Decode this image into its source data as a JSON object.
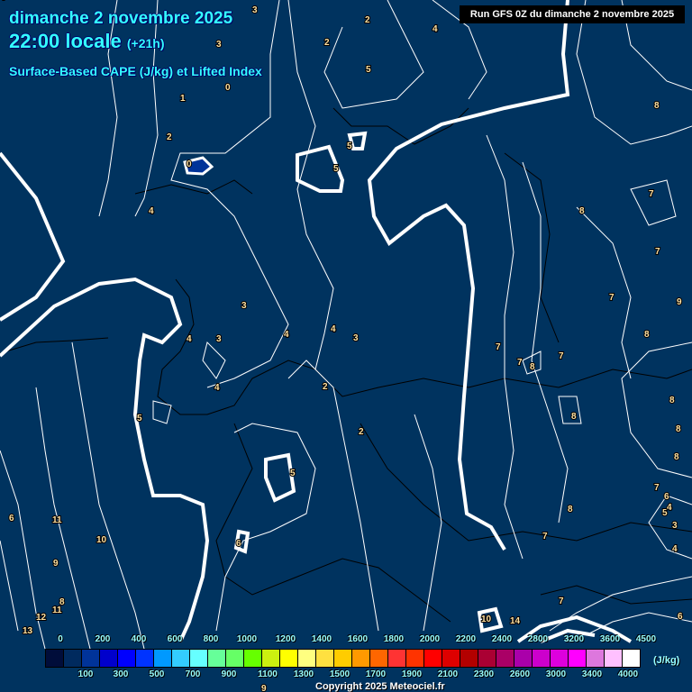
{
  "header": {
    "date": "dimanche 2 novembre 2025",
    "time": "22:00 locale",
    "offset": "(+21h)",
    "parameter": "Surface-Based CAPE (J/kg) et Lifted Index"
  },
  "run_label": "Run GFS 0Z du dimanche 2 novembre 2025",
  "legend": {
    "unit": "(J/kg)",
    "top_labels": [
      "0",
      "200",
      "400",
      "600",
      "800",
      "1000",
      "1200",
      "1400",
      "1600",
      "1800",
      "2000",
      "2200",
      "2400",
      "2800",
      "3200",
      "3600",
      "4500"
    ],
    "bottom_labels": [
      "100",
      "300",
      "500",
      "700",
      "900",
      "1100",
      "1300",
      "1500",
      "1700",
      "1900",
      "2100",
      "2300",
      "2600",
      "3000",
      "3400",
      "4000"
    ],
    "colors": [
      "#000d3a",
      "#002a5e",
      "#003399",
      "#0000cc",
      "#0000ff",
      "#0033ff",
      "#0099ff",
      "#33ccff",
      "#66ffff",
      "#66ff99",
      "#66ff66",
      "#66ff00",
      "#ccf010",
      "#ffff00",
      "#ffff80",
      "#ffe040",
      "#ffcc00",
      "#ff9900",
      "#ff6600",
      "#ff3333",
      "#ff3300",
      "#ff0000",
      "#dd0000",
      "#b30000",
      "#aa0033",
      "#aa0066",
      "#aa00aa",
      "#cc00cc",
      "#dd00dd",
      "#ff00ff",
      "#dd77dd",
      "#ffc0ff",
      "#ffffff"
    ]
  },
  "map": {
    "background": "#00335f",
    "cape_value_shown": "0-100 J/kg",
    "lifted_index_labels": [
      "3",
      "3",
      "2",
      "4",
      "2",
      "5",
      "1",
      "2",
      "0",
      "0",
      "5",
      "5",
      "4",
      "4",
      "3",
      "3",
      "4",
      "3",
      "4",
      "2",
      "2",
      "4",
      "5",
      "5",
      "6",
      "7",
      "7",
      "8",
      "8",
      "7",
      "7",
      "8",
      "7",
      "9",
      "8",
      "7",
      "8",
      "8",
      "8",
      "8",
      "7",
      "6",
      "5",
      "3",
      "4",
      "4",
      "6",
      "8",
      "7",
      "7",
      "6",
      "11",
      "9",
      "10",
      "8",
      "11",
      "12",
      "13",
      "14",
      "10",
      "9",
      "4"
    ]
  },
  "copyright": "Copyright 2025 Meteociel.fr"
}
